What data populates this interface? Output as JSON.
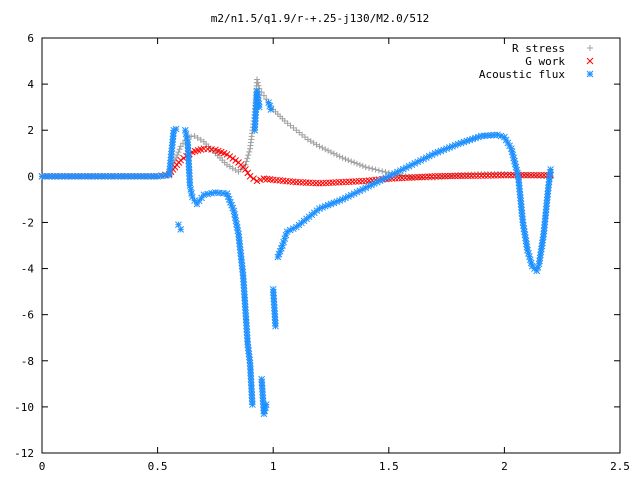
{
  "chart_data": {
    "type": "scatter",
    "title": "m2/n1.5/q1.9/r-+.25-j130/M2.0/512",
    "xlabel": "",
    "ylabel": "",
    "xlim": [
      0,
      2.5
    ],
    "ylim": [
      -12,
      6
    ],
    "x_ticks": [
      "0",
      "0.5",
      "1",
      "1.5",
      "2",
      "2.5"
    ],
    "y_ticks": [
      "6",
      "4",
      "2",
      "0",
      "-2",
      "-4",
      "-6",
      "-8",
      "-10",
      "-12"
    ],
    "grid": false,
    "legend_position": "top-right",
    "series": [
      {
        "name": "R stress",
        "marker": "plus",
        "color": "#a0a0a0",
        "x": [
          0.0,
          0.1,
          0.2,
          0.3,
          0.4,
          0.5,
          0.55,
          0.58,
          0.6,
          0.63,
          0.66,
          0.7,
          0.75,
          0.8,
          0.85,
          0.88,
          0.9,
          0.92,
          0.93,
          0.94,
          0.96,
          0.98,
          1.0,
          1.05,
          1.1,
          1.15,
          1.2,
          1.3,
          1.4,
          1.5,
          1.6,
          1.7,
          1.8,
          1.9,
          2.0,
          2.1,
          2.2
        ],
        "y": [
          0.0,
          0.0,
          0.0,
          0.0,
          0.0,
          0.0,
          0.05,
          0.8,
          1.3,
          1.7,
          1.75,
          1.5,
          1.0,
          0.5,
          0.2,
          0.5,
          1.2,
          2.8,
          4.2,
          3.8,
          3.5,
          3.2,
          2.9,
          2.4,
          2.0,
          1.6,
          1.3,
          0.8,
          0.4,
          0.15,
          -0.05,
          -0.05,
          0.05,
          0.1,
          0.1,
          0.05,
          0.0
        ]
      },
      {
        "name": "G work",
        "marker": "cross",
        "color": "#ff0000",
        "x": [
          0.0,
          0.1,
          0.2,
          0.3,
          0.4,
          0.5,
          0.55,
          0.6,
          0.65,
          0.7,
          0.75,
          0.8,
          0.85,
          0.88,
          0.9,
          0.93,
          0.96,
          1.0,
          1.1,
          1.2,
          1.3,
          1.4,
          1.5,
          1.6,
          1.7,
          1.8,
          1.9,
          2.0,
          2.1,
          2.2
        ],
        "y": [
          0.0,
          0.0,
          0.0,
          0.0,
          0.0,
          0.0,
          0.1,
          0.7,
          1.05,
          1.2,
          1.15,
          0.95,
          0.6,
          0.3,
          0.0,
          -0.2,
          -0.1,
          -0.15,
          -0.25,
          -0.3,
          -0.25,
          -0.2,
          -0.1,
          -0.05,
          0.0,
          0.02,
          0.03,
          0.05,
          0.05,
          0.05
        ]
      },
      {
        "name": "Acoustic flux",
        "marker": "star",
        "color": "#1e90ff",
        "x": [
          0.0,
          0.1,
          0.2,
          0.3,
          0.4,
          0.5,
          0.55,
          0.57,
          0.58,
          0.59,
          0.6,
          0.62,
          0.63,
          0.64,
          0.65,
          0.67,
          0.7,
          0.75,
          0.8,
          0.83,
          0.85,
          0.87,
          0.88,
          0.89,
          0.9,
          0.91,
          0.92,
          0.93,
          0.94,
          0.95,
          0.96,
          0.97,
          0.98,
          0.99,
          1.0,
          1.01,
          1.02,
          1.04,
          1.06,
          1.1,
          1.2,
          1.3,
          1.4,
          1.5,
          1.6,
          1.7,
          1.8,
          1.9,
          1.97,
          2.0,
          2.03,
          2.06,
          2.08,
          2.1,
          2.12,
          2.14,
          2.15,
          2.17,
          2.19,
          2.2
        ],
        "y": [
          0.0,
          0.0,
          0.0,
          0.0,
          0.0,
          0.0,
          0.05,
          2.0,
          2.05,
          -2.1,
          -2.3,
          2.0,
          1.5,
          -0.4,
          -0.9,
          -1.2,
          -0.8,
          -0.7,
          -0.75,
          -1.5,
          -2.5,
          -4.3,
          -5.8,
          -7.3,
          -8.1,
          -9.9,
          2.0,
          3.7,
          3.0,
          -8.8,
          -10.3,
          -9.9,
          3.2,
          2.9,
          -4.9,
          -6.5,
          -3.5,
          -3.0,
          -2.4,
          -2.2,
          -1.4,
          -1.0,
          -0.5,
          0.0,
          0.5,
          1.0,
          1.4,
          1.75,
          1.8,
          1.7,
          1.2,
          0.0,
          -2.0,
          -3.2,
          -3.9,
          -4.1,
          -3.8,
          -2.5,
          -0.5,
          0.3
        ]
      }
    ]
  }
}
